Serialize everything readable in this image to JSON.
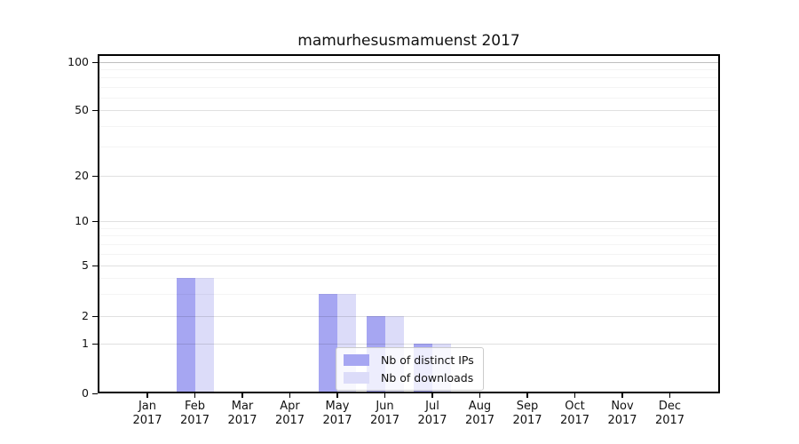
{
  "chart_data": {
    "type": "bar",
    "title": "mamurhesusmamuenst 2017",
    "categories": [
      "Jan 2017",
      "Feb 2017",
      "Mar 2017",
      "Apr 2017",
      "May 2017",
      "Jun 2017",
      "Jul 2017",
      "Aug 2017",
      "Sep 2017",
      "Oct 2017",
      "Nov 2017",
      "Dec 2017"
    ],
    "series": [
      {
        "name": "Nb of distinct IPs",
        "color": "#a6a6f2",
        "values": [
          0,
          4,
          0,
          0,
          3,
          2,
          1,
          0,
          0,
          0,
          0,
          0
        ]
      },
      {
        "name": "Nb of downloads",
        "color": "#dcdcf9",
        "values": [
          0,
          4,
          0,
          0,
          3,
          2,
          1,
          0,
          0,
          0,
          0,
          0
        ]
      }
    ],
    "yticks": [
      100,
      50,
      20,
      10,
      5,
      2,
      1,
      0
    ],
    "minor_yticks": [
      3,
      4,
      6,
      7,
      8,
      9,
      30,
      40,
      60,
      70,
      80,
      90
    ],
    "yscale": "log above 1, linear 0-1",
    "ylim": [
      0,
      112
    ],
    "xlabel": "",
    "ylabel": "",
    "grid": "horizontal major+minor",
    "legend_location": "inside-lower-center"
  }
}
